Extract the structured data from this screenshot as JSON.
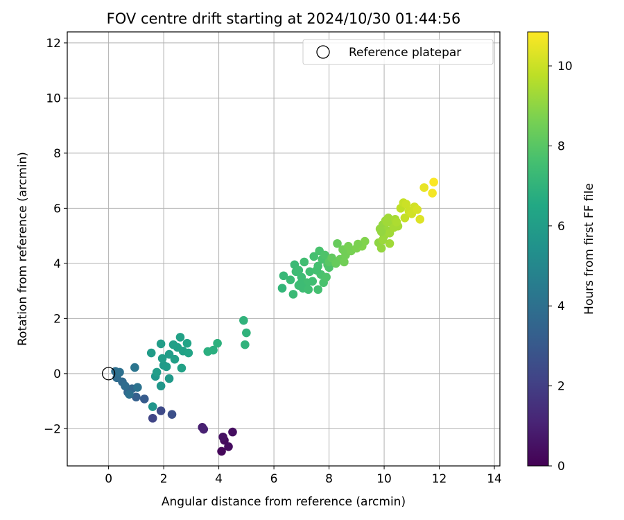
{
  "chart_data": {
    "type": "scatter",
    "title": "FOV centre drift starting at 2024/10/30 01:44:56",
    "xlabel": "Angular distance from reference (arcmin)",
    "ylabel": "Rotation from reference (arcmin)",
    "xlim": [
      -1.5,
      14.2
    ],
    "ylim": [
      -3.35,
      12.4
    ],
    "xticks": [
      0,
      2,
      4,
      6,
      8,
      10,
      12,
      14
    ],
    "yticks": [
      -2,
      0,
      2,
      4,
      6,
      8,
      10,
      12
    ],
    "grid": true,
    "legend": {
      "position": "upper right",
      "entries": [
        "Reference platepar"
      ]
    },
    "reference_point": {
      "name": "Reference platepar",
      "x": 0,
      "y": 0,
      "marker": "open circle"
    },
    "colorbar": {
      "label": "Hours from first FF file",
      "range": [
        0,
        10.85
      ],
      "ticks": [
        0,
        2,
        4,
        6,
        8,
        10
      ],
      "colormap": "viridis"
    },
    "series": [
      {
        "points": [
          {
            "x": 4.1,
            "y": -2.82,
            "c": 0.2
          },
          {
            "x": 4.2,
            "y": -2.42,
            "c": 0.3
          },
          {
            "x": 4.35,
            "y": -2.65,
            "c": 0.35
          },
          {
            "x": 4.5,
            "y": -2.12,
            "c": 0.4
          },
          {
            "x": 4.15,
            "y": -2.3,
            "c": 0.5
          },
          {
            "x": 3.4,
            "y": -1.95,
            "c": 0.9
          },
          {
            "x": 3.45,
            "y": -2.02,
            "c": 1.0
          },
          {
            "x": 1.6,
            "y": -1.62,
            "c": 2.2
          },
          {
            "x": 1.9,
            "y": -1.35,
            "c": 2.4
          },
          {
            "x": 2.3,
            "y": -1.48,
            "c": 2.6
          },
          {
            "x": 1.3,
            "y": -0.92,
            "c": 3.1
          },
          {
            "x": 1.0,
            "y": -0.85,
            "c": 3.3
          },
          {
            "x": 0.7,
            "y": -0.68,
            "c": 3.5
          },
          {
            "x": 0.85,
            "y": -0.55,
            "c": 3.6
          },
          {
            "x": 0.5,
            "y": -0.3,
            "c": 3.7
          },
          {
            "x": 0.3,
            "y": -0.15,
            "c": 3.8
          },
          {
            "x": 0.25,
            "y": 0.08,
            "c": 3.9
          },
          {
            "x": 0.4,
            "y": 0.05,
            "c": 4.0
          },
          {
            "x": 0.6,
            "y": -0.45,
            "c": 3.8
          },
          {
            "x": 1.05,
            "y": -0.5,
            "c": 4.1
          },
          {
            "x": 0.95,
            "y": 0.22,
            "c": 4.2
          },
          {
            "x": 0.75,
            "y": -0.75,
            "c": 4.0
          },
          {
            "x": 1.6,
            "y": -1.2,
            "c": 5.6
          },
          {
            "x": 1.7,
            "y": -0.1,
            "c": 5.7
          },
          {
            "x": 1.9,
            "y": -0.45,
            "c": 5.7
          },
          {
            "x": 2.0,
            "y": 0.3,
            "c": 5.8
          },
          {
            "x": 2.2,
            "y": -0.18,
            "c": 5.8
          },
          {
            "x": 1.55,
            "y": 0.75,
            "c": 5.9
          },
          {
            "x": 1.9,
            "y": 1.08,
            "c": 6.0
          },
          {
            "x": 2.2,
            "y": 0.7,
            "c": 6.0
          },
          {
            "x": 2.4,
            "y": 0.52,
            "c": 6.1
          },
          {
            "x": 2.5,
            "y": 0.95,
            "c": 6.1
          },
          {
            "x": 2.6,
            "y": 1.32,
            "c": 6.2
          },
          {
            "x": 2.7,
            "y": 0.82,
            "c": 6.2
          },
          {
            "x": 2.85,
            "y": 1.1,
            "c": 6.3
          },
          {
            "x": 2.9,
            "y": 0.75,
            "c": 6.3
          },
          {
            "x": 2.65,
            "y": 0.2,
            "c": 6.2
          },
          {
            "x": 1.75,
            "y": 0.05,
            "c": 6.0
          },
          {
            "x": 2.35,
            "y": 1.05,
            "c": 6.1
          },
          {
            "x": 1.95,
            "y": 0.55,
            "c": 6.0
          },
          {
            "x": 2.1,
            "y": 0.25,
            "c": 5.9
          },
          {
            "x": 3.6,
            "y": 0.8,
            "c": 6.8
          },
          {
            "x": 3.8,
            "y": 0.85,
            "c": 6.8
          },
          {
            "x": 3.95,
            "y": 1.1,
            "c": 6.9
          },
          {
            "x": 4.9,
            "y": 1.93,
            "c": 7.0
          },
          {
            "x": 4.95,
            "y": 1.05,
            "c": 7.0
          },
          {
            "x": 5.0,
            "y": 1.48,
            "c": 7.0
          },
          {
            "x": 6.3,
            "y": 3.1,
            "c": 7.1
          },
          {
            "x": 6.35,
            "y": 3.55,
            "c": 7.2
          },
          {
            "x": 6.6,
            "y": 3.4,
            "c": 7.3
          },
          {
            "x": 6.7,
            "y": 2.88,
            "c": 7.3
          },
          {
            "x": 6.8,
            "y": 3.7,
            "c": 7.4
          },
          {
            "x": 6.9,
            "y": 3.2,
            "c": 7.4
          },
          {
            "x": 7.0,
            "y": 3.5,
            "c": 7.4
          },
          {
            "x": 7.1,
            "y": 4.05,
            "c": 7.5
          },
          {
            "x": 7.2,
            "y": 3.3,
            "c": 7.5
          },
          {
            "x": 7.3,
            "y": 3.7,
            "c": 7.5
          },
          {
            "x": 7.45,
            "y": 4.25,
            "c": 7.6
          },
          {
            "x": 7.6,
            "y": 3.05,
            "c": 7.6
          },
          {
            "x": 7.65,
            "y": 4.45,
            "c": 7.7
          },
          {
            "x": 7.7,
            "y": 3.6,
            "c": 7.7
          },
          {
            "x": 7.8,
            "y": 3.3,
            "c": 7.7
          },
          {
            "x": 7.9,
            "y": 3.5,
            "c": 7.8
          },
          {
            "x": 7.95,
            "y": 3.95,
            "c": 7.8
          },
          {
            "x": 8.0,
            "y": 3.85,
            "c": 7.8
          },
          {
            "x": 6.75,
            "y": 3.95,
            "c": 7.3
          },
          {
            "x": 7.05,
            "y": 3.1,
            "c": 7.4
          },
          {
            "x": 7.4,
            "y": 3.35,
            "c": 7.5
          },
          {
            "x": 7.55,
            "y": 3.75,
            "c": 7.6
          },
          {
            "x": 6.95,
            "y": 3.25,
            "c": 7.4
          },
          {
            "x": 7.75,
            "y": 4.15,
            "c": 7.7
          },
          {
            "x": 7.25,
            "y": 3.05,
            "c": 7.5
          },
          {
            "x": 6.9,
            "y": 3.75,
            "c": 7.4
          },
          {
            "x": 7.85,
            "y": 4.3,
            "c": 7.8
          },
          {
            "x": 7.6,
            "y": 3.9,
            "c": 7.6
          },
          {
            "x": 8.0,
            "y": 4.05,
            "c": 8.0
          },
          {
            "x": 8.1,
            "y": 4.2,
            "c": 8.2
          },
          {
            "x": 8.3,
            "y": 4.72,
            "c": 8.3
          },
          {
            "x": 8.4,
            "y": 4.15,
            "c": 8.4
          },
          {
            "x": 8.5,
            "y": 4.5,
            "c": 8.5
          },
          {
            "x": 8.6,
            "y": 4.3,
            "c": 8.5
          },
          {
            "x": 8.7,
            "y": 4.62,
            "c": 8.6
          },
          {
            "x": 8.8,
            "y": 4.45,
            "c": 8.6
          },
          {
            "x": 8.55,
            "y": 4.05,
            "c": 8.5
          },
          {
            "x": 8.25,
            "y": 4.0,
            "c": 8.3
          },
          {
            "x": 9.0,
            "y": 4.55,
            "c": 8.7
          },
          {
            "x": 9.2,
            "y": 4.62,
            "c": 8.8
          },
          {
            "x": 9.3,
            "y": 4.8,
            "c": 8.8
          },
          {
            "x": 9.05,
            "y": 4.7,
            "c": 8.7
          },
          {
            "x": 9.8,
            "y": 4.75,
            "c": 9.0
          },
          {
            "x": 9.85,
            "y": 5.25,
            "c": 9.1
          },
          {
            "x": 9.9,
            "y": 4.55,
            "c": 9.1
          },
          {
            "x": 9.95,
            "y": 5.4,
            "c": 9.1
          },
          {
            "x": 10.0,
            "y": 5.0,
            "c": 9.2
          },
          {
            "x": 10.05,
            "y": 5.55,
            "c": 9.2
          },
          {
            "x": 10.1,
            "y": 5.2,
            "c": 9.2
          },
          {
            "x": 10.15,
            "y": 5.65,
            "c": 9.3
          },
          {
            "x": 10.2,
            "y": 5.1,
            "c": 9.3
          },
          {
            "x": 10.3,
            "y": 5.45,
            "c": 9.3
          },
          {
            "x": 10.35,
            "y": 5.3,
            "c": 9.4
          },
          {
            "x": 10.4,
            "y": 5.6,
            "c": 9.4
          },
          {
            "x": 10.5,
            "y": 5.35,
            "c": 9.4
          },
          {
            "x": 10.2,
            "y": 4.72,
            "c": 9.3
          },
          {
            "x": 9.95,
            "y": 4.85,
            "c": 9.2
          },
          {
            "x": 10.1,
            "y": 5.5,
            "c": 9.3
          },
          {
            "x": 9.9,
            "y": 5.15,
            "c": 9.1
          },
          {
            "x": 10.45,
            "y": 5.5,
            "c": 9.5
          },
          {
            "x": 10.6,
            "y": 6.0,
            "c": 9.8
          },
          {
            "x": 10.7,
            "y": 6.2,
            "c": 9.9
          },
          {
            "x": 10.75,
            "y": 5.65,
            "c": 9.9
          },
          {
            "x": 10.8,
            "y": 6.15,
            "c": 10.0
          },
          {
            "x": 10.9,
            "y": 5.9,
            "c": 10.0
          },
          {
            "x": 11.0,
            "y": 5.8,
            "c": 10.1
          },
          {
            "x": 11.1,
            "y": 6.05,
            "c": 10.1
          },
          {
            "x": 11.2,
            "y": 5.95,
            "c": 10.2
          },
          {
            "x": 11.3,
            "y": 5.6,
            "c": 10.3
          },
          {
            "x": 11.45,
            "y": 6.75,
            "c": 10.5
          },
          {
            "x": 11.75,
            "y": 6.55,
            "c": 10.7
          },
          {
            "x": 11.8,
            "y": 6.95,
            "c": 10.8
          }
        ]
      }
    ]
  }
}
